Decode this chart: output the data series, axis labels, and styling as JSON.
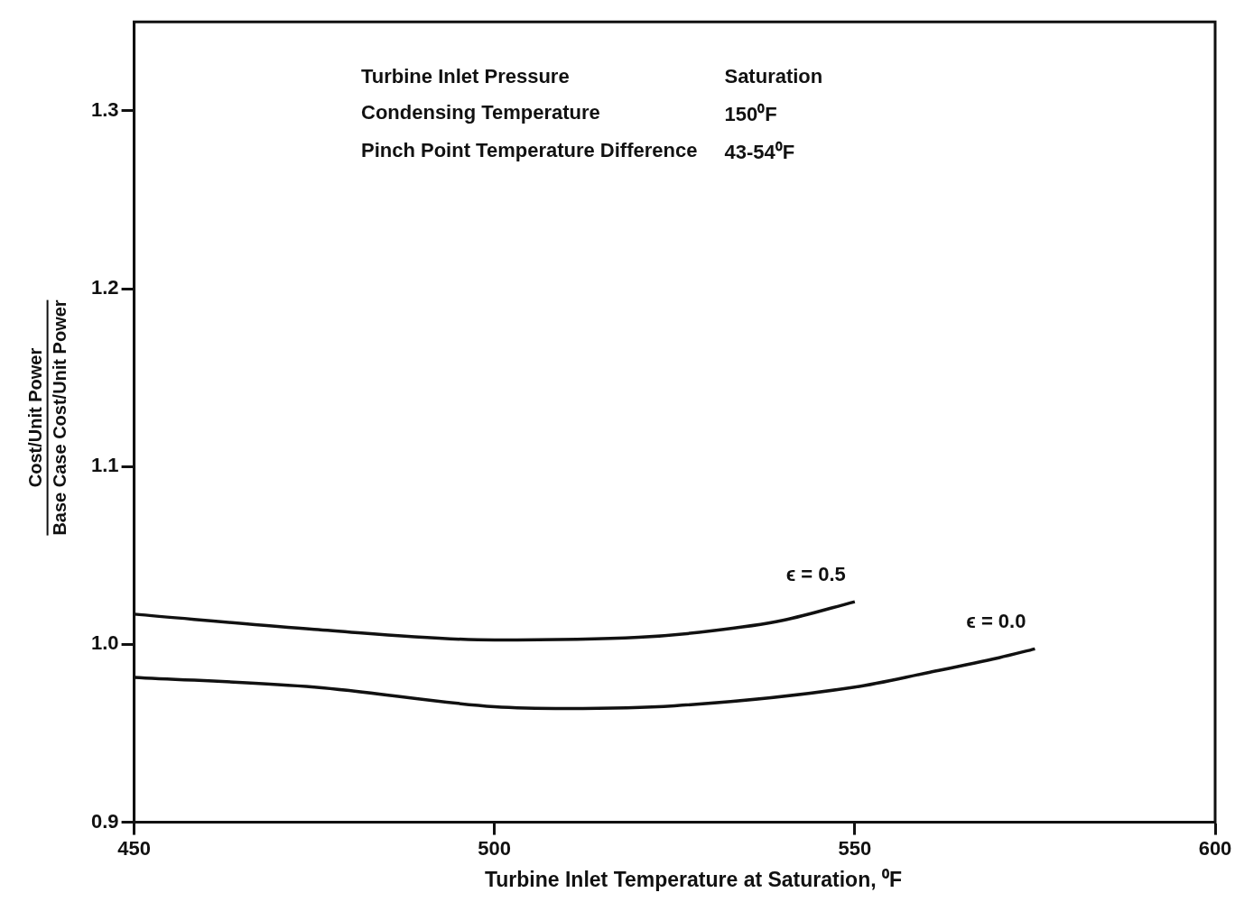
{
  "chart_data": {
    "type": "line",
    "xlabel": "Turbine Inlet Temperature at Saturation, ⁰F",
    "ylabel": "Cost/Unit Power\nBase Case Cost/Unit Power",
    "annotations": [
      "Turbine Inlet Pressure",
      "Saturation",
      "Condensing Temperature",
      "150⁰F",
      "Pinch Point Temperature Difference",
      "43-54⁰F"
    ],
    "series": [
      {
        "name": "ϵ = 0.5",
        "color": "#111111",
        "x": [
          450,
          475,
          500,
          520,
          530,
          540,
          550
        ],
        "values": [
          1.017,
          1.0085,
          1.0025,
          1.004,
          1.0075,
          1.0135,
          1.024
        ]
      },
      {
        "name": "ϵ = 0.0",
        "color": "#111111",
        "x": [
          450,
          475,
          500,
          510,
          525,
          550,
          560,
          570,
          575
        ],
        "values": [
          0.9815,
          0.976,
          0.965,
          0.964,
          0.9655,
          0.976,
          0.984,
          0.9925,
          0.9975
        ]
      }
    ],
    "xlim": [
      450,
      600
    ],
    "xticks": [
      450,
      500,
      550,
      600
    ],
    "ylim": [
      0.9,
      1.35
    ],
    "yticks": [
      0.9,
      {
        "value": 1.0,
        "label": "1.0"
      },
      1.1,
      1.2,
      1.3
    ],
    "grid": false,
    "legend": false,
    "marker": "none",
    "line_style": "solid"
  }
}
